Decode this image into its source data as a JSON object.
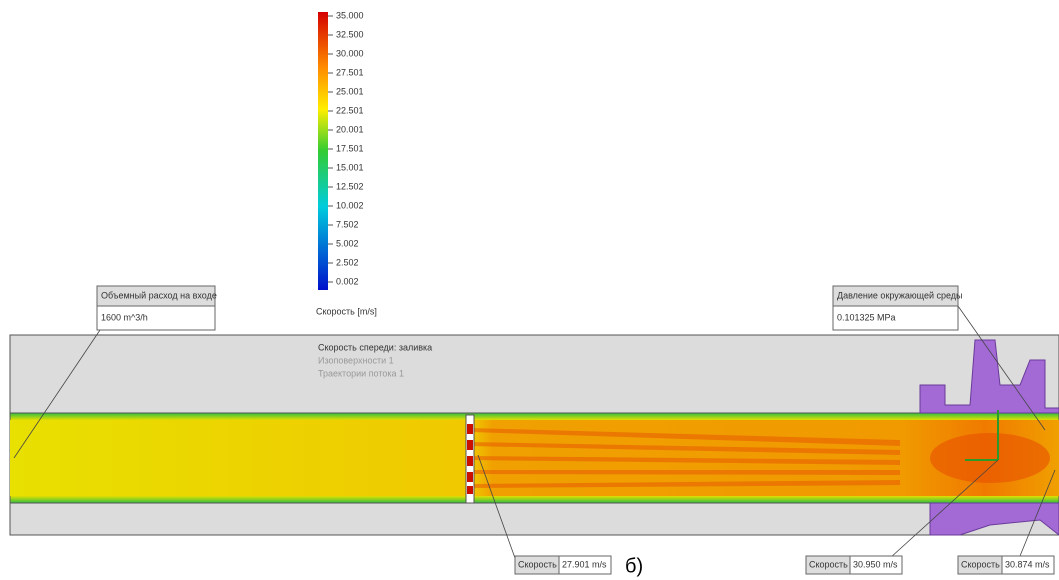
{
  "legend": {
    "ticks": [
      "35.000",
      "32.500",
      "30.000",
      "27.501",
      "25.001",
      "22.501",
      "20.001",
      "17.501",
      "15.001",
      "12.502",
      "10.002",
      "7.502",
      "5.002",
      "2.502",
      "0.002"
    ],
    "title": "Скорость [m/s]"
  },
  "inlet": {
    "label": "Объемный расход на входе",
    "value": "1600 m^3/h"
  },
  "pressure": {
    "label": "Давление окружающей среды",
    "value": "0.101325 MPa"
  },
  "plot_labels": [
    "Скорость спереди: заливка",
    "Изоповерхности 1",
    "Траектории потока 1"
  ],
  "probes": [
    {
      "label": "Скорость",
      "value": "27.901 m/s"
    },
    {
      "label": "Скорость",
      "value": "30.950 m/s"
    },
    {
      "label": "Скорость",
      "value": "30.874 m/s"
    }
  ],
  "figure_label": "б)"
}
